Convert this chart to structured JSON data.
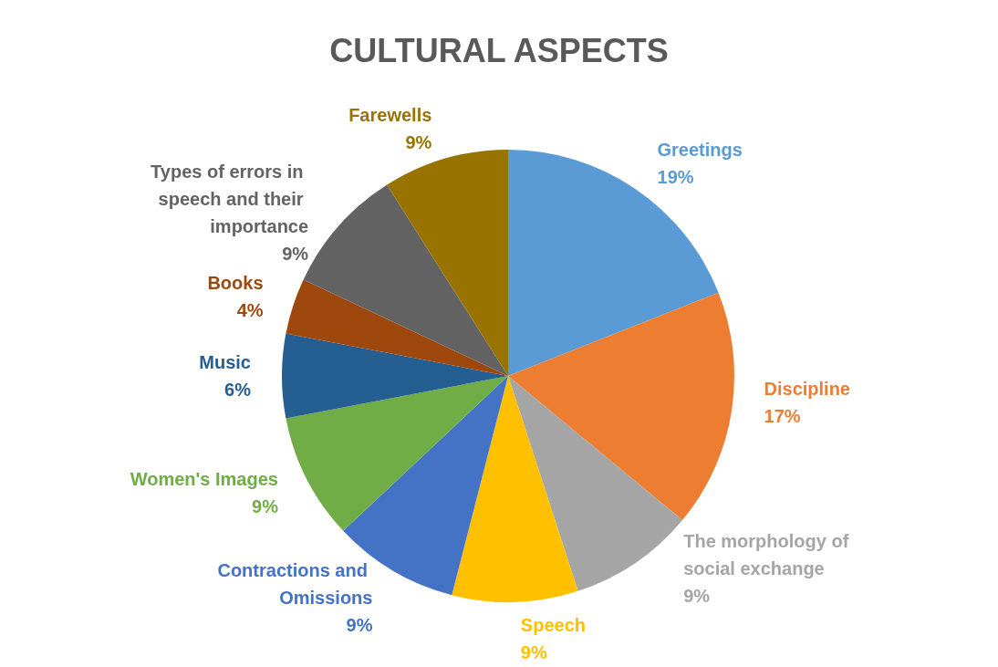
{
  "chart_data": {
    "type": "pie",
    "title": "CULTURAL ASPECTS",
    "categories": [
      "Greetings",
      "Discipline",
      "The morphology of social exchange",
      "Speech",
      "Contractions and Omissions",
      "Women's Images",
      "Music",
      "Books",
      "Types of errors in speech and their importance",
      "Farewells"
    ],
    "values": [
      19,
      17,
      9,
      9,
      9,
      9,
      6,
      4,
      9,
      9
    ],
    "value_labels": [
      "19%",
      "17%",
      "9%",
      "9%",
      "9%",
      "9%",
      "6%",
      "4%",
      "9%",
      "9%"
    ],
    "colors": [
      "#5b9bd5",
      "#ed7d31",
      "#a5a5a5",
      "#ffc000",
      "#4472c4",
      "#70ad47",
      "#255e91",
      "#9e480e",
      "#636363",
      "#997300"
    ],
    "legend": false
  }
}
